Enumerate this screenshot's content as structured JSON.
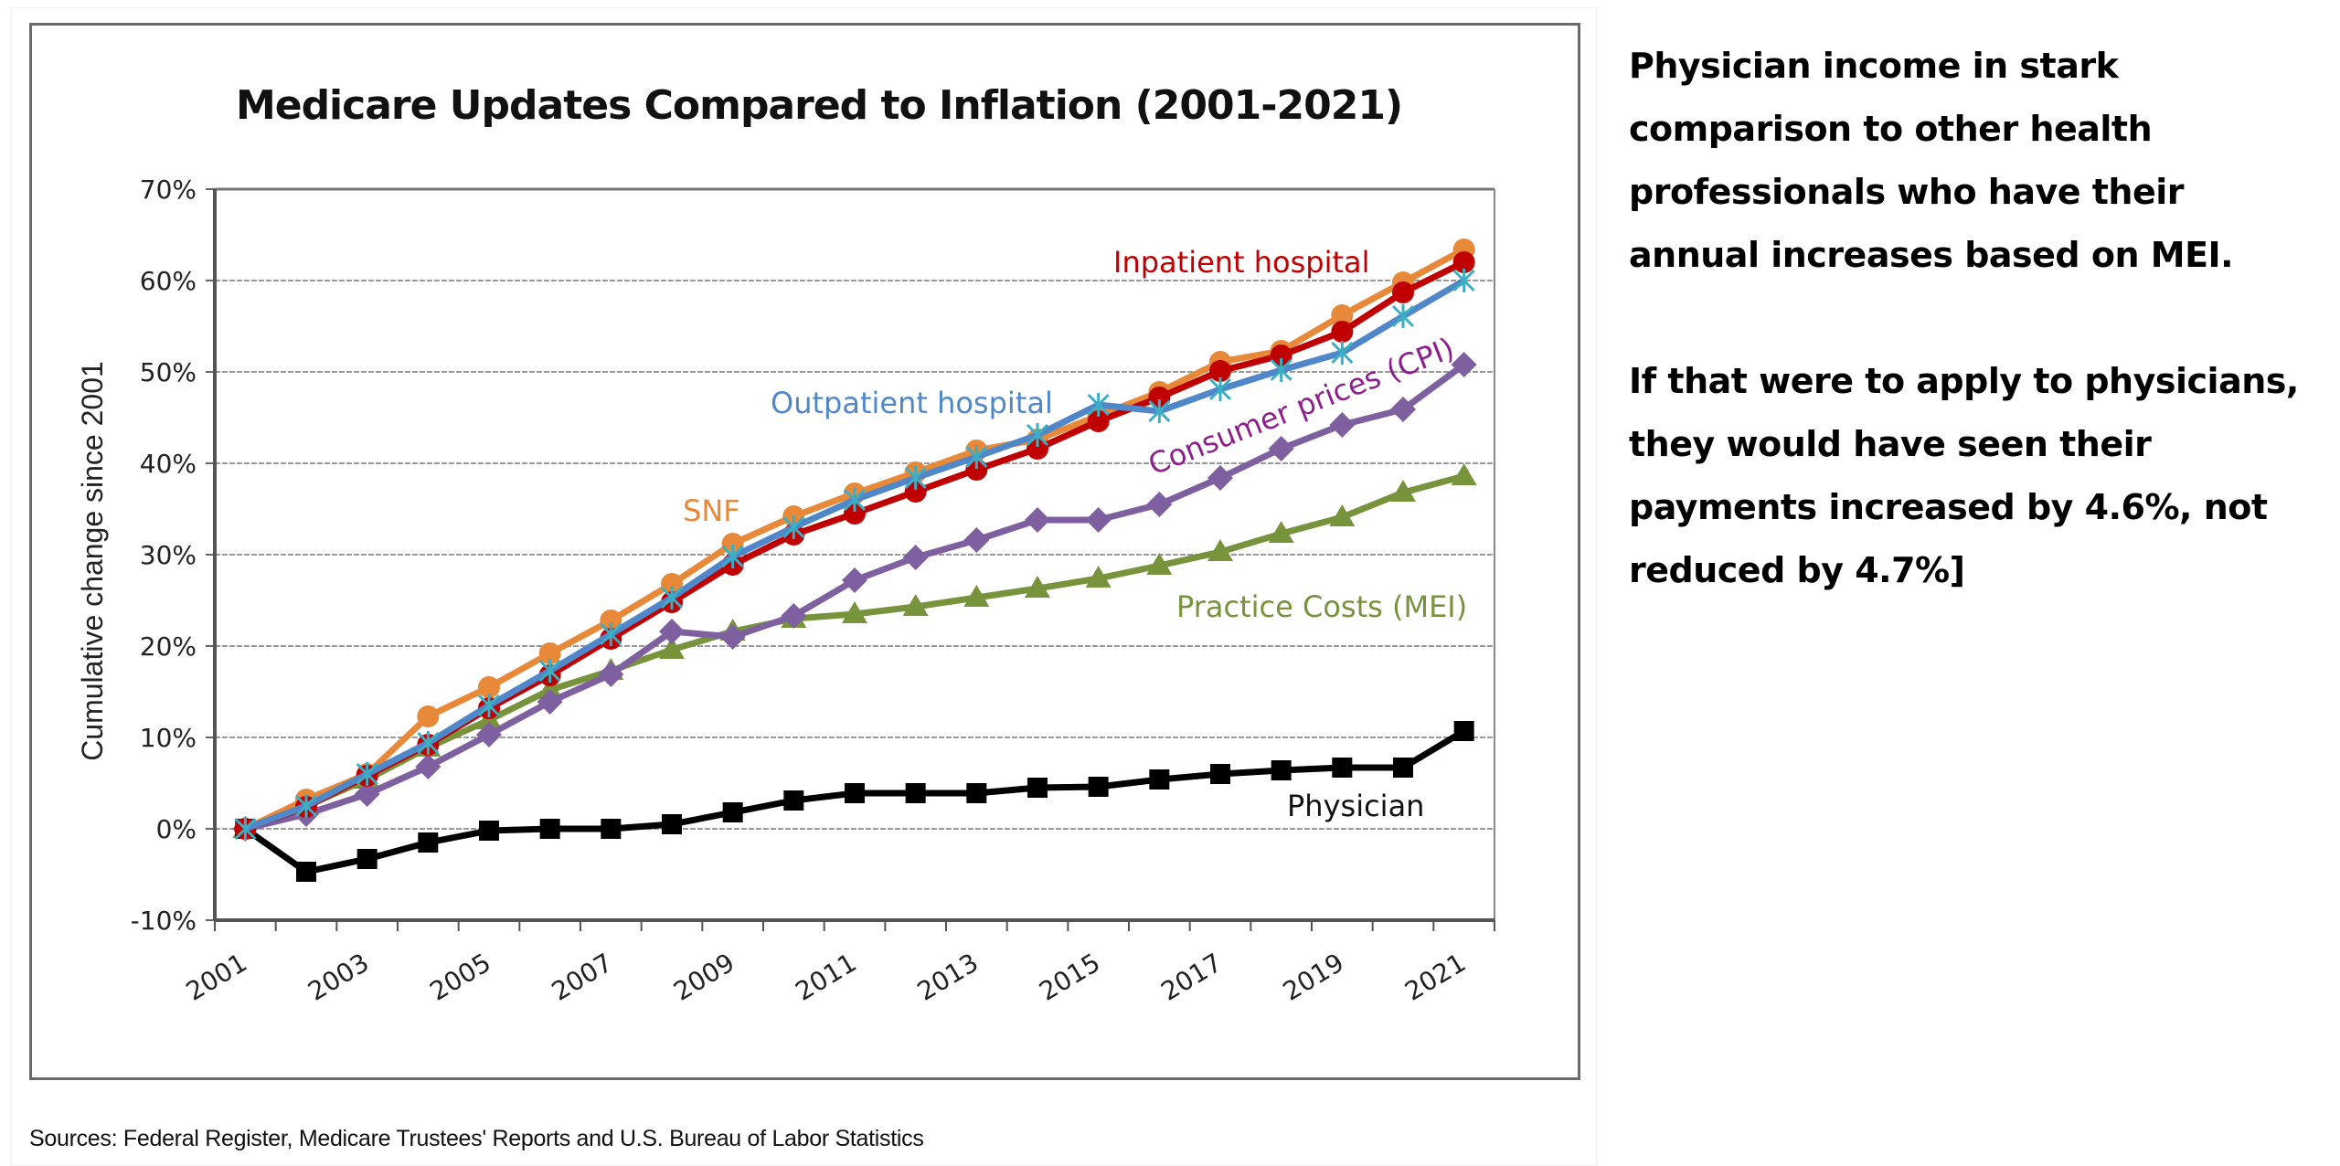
{
  "chart_data": {
    "type": "line",
    "title": "Medicare Updates Compared to Inflation (2001-2021)",
    "xlabel": "",
    "ylabel": "Cumulative change since 2001",
    "ylim": [
      -10,
      70
    ],
    "yticks": [
      -10,
      0,
      10,
      20,
      30,
      40,
      50,
      60,
      70
    ],
    "ytick_labels": [
      "-10%",
      "0%",
      "10%",
      "20%",
      "30%",
      "40%",
      "50%",
      "60%",
      "70%"
    ],
    "x": [
      2001,
      2002,
      2003,
      2004,
      2005,
      2006,
      2007,
      2008,
      2009,
      2010,
      2011,
      2012,
      2013,
      2014,
      2015,
      2016,
      2017,
      2018,
      2019,
      2020,
      2021
    ],
    "xtick_labels": [
      "2001",
      "2003",
      "2005",
      "2007",
      "2009",
      "2011",
      "2013",
      "2015",
      "2017",
      "2019",
      "2021"
    ],
    "grid": true,
    "legend": "inline labels",
    "series": [
      {
        "name": "SNF",
        "label": "SNF",
        "color": "#E8893A",
        "marker": "circle",
        "values": [
          0,
          3.2,
          6.0,
          12.3,
          15.5,
          19.2,
          22.8,
          26.8,
          31.2,
          34.2,
          36.7,
          39.0,
          41.4,
          42.6,
          45.2,
          47.8,
          51.1,
          52.3,
          56.2,
          59.8,
          63.4
        ]
      },
      {
        "name": "Inpatient hospital",
        "label": "Inpatient hospital",
        "color": "#C00000",
        "marker": "circle",
        "values": [
          0,
          2.4,
          5.8,
          9.2,
          13.2,
          16.8,
          20.8,
          24.8,
          28.9,
          32.2,
          34.5,
          36.9,
          39.3,
          41.6,
          44.6,
          47.2,
          50.1,
          51.8,
          54.4,
          58.7,
          62.0
        ]
      },
      {
        "name": "Outpatient hospital",
        "label": "Outpatient hospital",
        "color": "#4F87C9",
        "marker": "asterisk",
        "values": [
          0,
          2.5,
          6.0,
          9.4,
          13.5,
          17.3,
          21.3,
          25.3,
          29.8,
          33.0,
          36.0,
          38.4,
          40.7,
          43.1,
          46.4,
          45.7,
          48.1,
          50.2,
          52.1,
          56.1,
          60.0
        ]
      },
      {
        "name": "Consumer prices (CPI)",
        "label": "Consumer prices (CPI)",
        "color": "#7E5FA0",
        "label_color": "#8E1E8E",
        "marker": "diamond",
        "values": [
          0,
          1.6,
          3.8,
          6.8,
          10.3,
          13.9,
          16.9,
          21.6,
          21.0,
          23.3,
          27.2,
          29.7,
          31.6,
          33.8,
          33.8,
          35.5,
          38.4,
          41.6,
          44.2,
          45.9,
          50.8
        ]
      },
      {
        "name": "Practice Costs (MEI)",
        "label": "Practice Costs (MEI)",
        "color": "#77933C",
        "marker": "triangle",
        "values": [
          0,
          2.5,
          5.4,
          8.9,
          11.9,
          15.2,
          17.3,
          19.6,
          21.6,
          23.0,
          23.5,
          24.3,
          25.3,
          26.3,
          27.4,
          28.8,
          30.3,
          32.3,
          34.1,
          36.8,
          38.6
        ]
      },
      {
        "name": "Physician",
        "label": "Physician",
        "color": "#000000",
        "marker": "square",
        "values": [
          0,
          -4.7,
          -3.3,
          -1.5,
          -0.2,
          0.0,
          0.0,
          0.5,
          1.8,
          3.1,
          3.9,
          3.9,
          3.9,
          4.5,
          4.6,
          5.4,
          6.0,
          6.4,
          6.7,
          6.7,
          10.7
        ]
      }
    ]
  },
  "source_note": "Sources:  Federal Register, Medicare Trustees' Reports and U.S. Bureau of Labor Statistics",
  "side_text": {
    "paragraph_1": "Physician income in stark comparison to other health professionals who have their annual increases based on MEI.",
    "paragraph_2": "If that were to apply to physicians, they would have seen their payments increased by 4.6%, not reduced by 4.7%]"
  }
}
